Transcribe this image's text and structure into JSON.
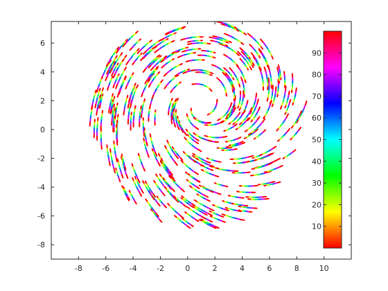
{
  "chart_data": {
    "type": "scatter",
    "description_free": true,
    "xlim": [
      -10,
      12
    ],
    "ylim": [
      -9,
      7.5
    ],
    "xticks": [
      -8,
      -6,
      -4,
      -2,
      0,
      2,
      4,
      6,
      8,
      10
    ],
    "yticks": [
      -8,
      -6,
      -4,
      -2,
      0,
      2,
      4,
      6
    ],
    "xtick_labels": [
      "-8",
      "-6",
      "-4",
      "-2",
      "0",
      "2",
      "4",
      "6",
      "8",
      "10"
    ],
    "ytick_labels": [
      "-8",
      "-6",
      "-4",
      "-2",
      "0",
      "2",
      "4",
      "6"
    ],
    "grid": false,
    "colormap": "hsv",
    "colorbar": {
      "range": [
        0,
        100
      ],
      "ticks": [
        10,
        20,
        30,
        40,
        50,
        60,
        70,
        80,
        90
      ],
      "tick_labels": [
        "10",
        "20",
        "30",
        "40",
        "50",
        "60",
        "70",
        "80",
        "90"
      ],
      "placement": "right-inside"
    },
    "pattern": "swirling-streamlines",
    "streamlines": {
      "count": 300,
      "center": [
        0.5,
        1.5
      ],
      "radius": 7.2,
      "color_value_range": [
        0,
        100
      ]
    }
  }
}
